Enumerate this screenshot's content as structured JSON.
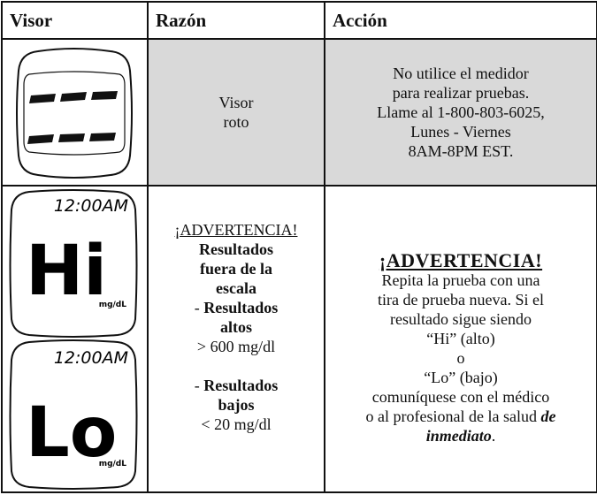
{
  "table": {
    "header": [
      "Visor",
      "Razón",
      "Acción"
    ],
    "rows": [
      {
        "reason": [
          "Visor",
          "roto"
        ],
        "action": [
          "No utilice el medidor",
          "para realizar pruebas.",
          "Llame al 1-800-803-6025,",
          "Lunes - Viernes",
          "8AM-8PM EST."
        ]
      },
      {
        "displays": [
          {
            "time": "12:00AM",
            "reading": "Hi",
            "unit": "mg/dL"
          },
          {
            "time": "12:00AM",
            "reading": "Lo",
            "unit": "mg/dL"
          }
        ],
        "reason": [
          "¡ADVERTENCIA!",
          "Resultados",
          "fuera de la",
          "escala",
          "-",
          "Resultados",
          "altos",
          "> 600 mg/dl",
          "-",
          "Resultados",
          "bajos",
          "< 20 mg/dl"
        ],
        "action": [
          "¡ADVERTENCIA!",
          "Repita la prueba con una",
          "tira de prueba nueva. Si el",
          "resultado sigue siendo",
          "“Hi” (alto)",
          "o",
          "“Lo” (bajo)",
          "comuníquese con el médico",
          "o al profesional de la salud",
          "de",
          "inmediato",
          "."
        ]
      }
    ]
  }
}
